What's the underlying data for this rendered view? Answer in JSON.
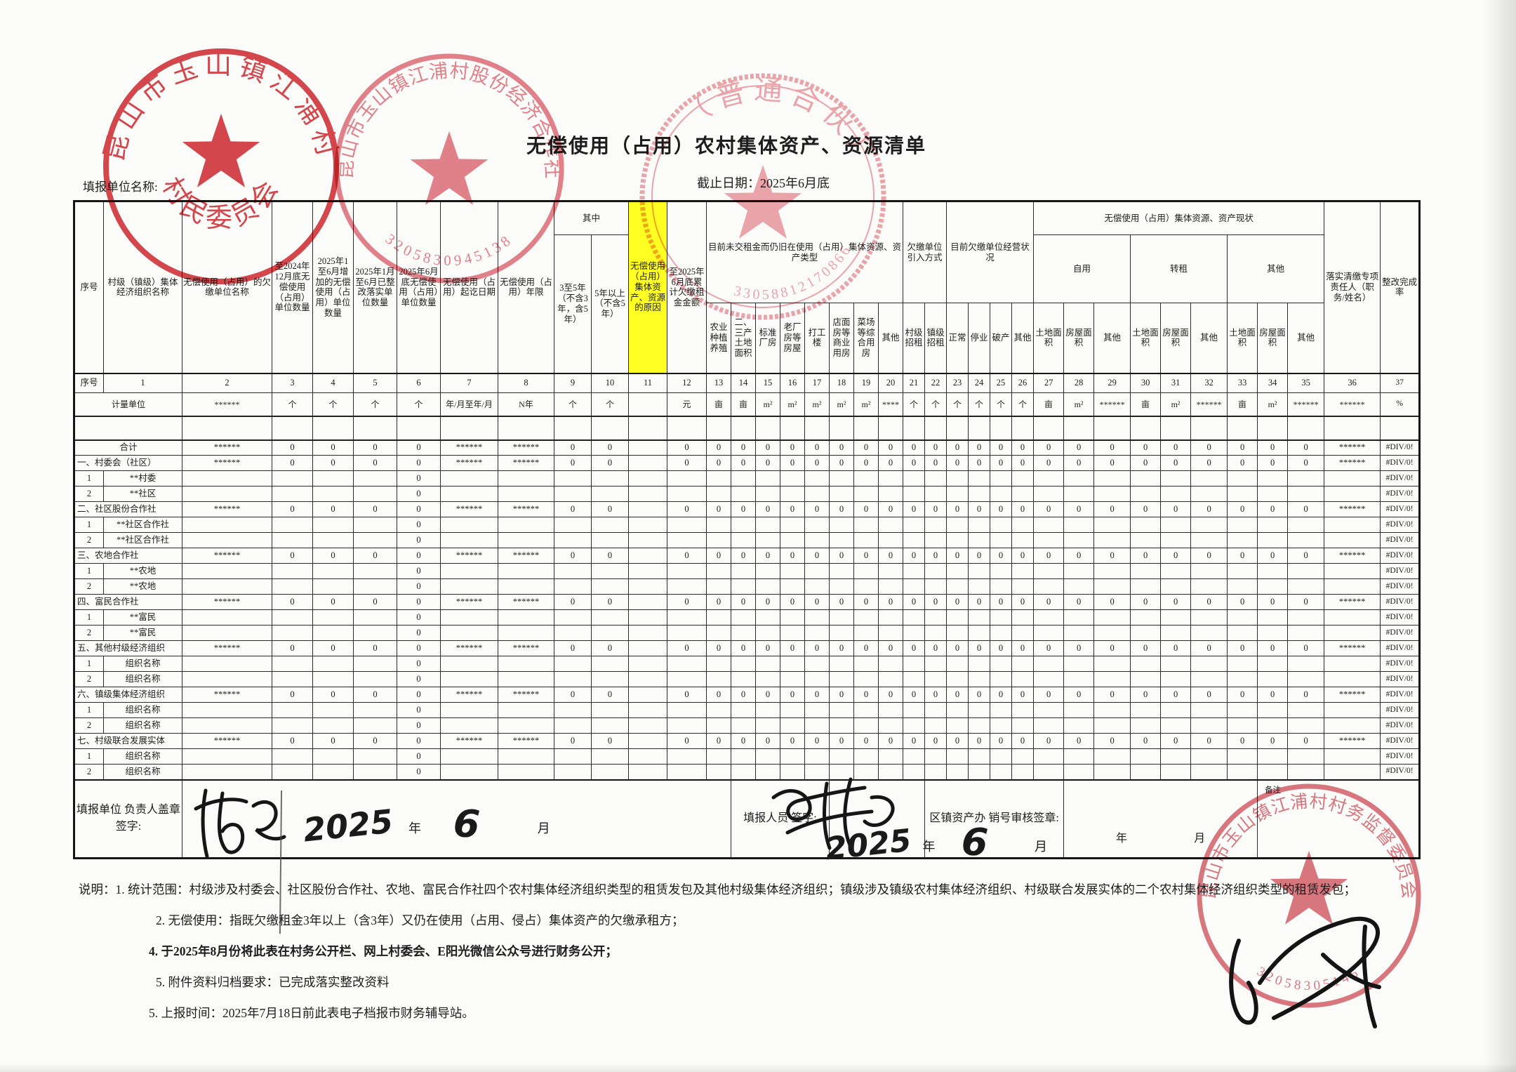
{
  "page": {
    "title": "无偿使用（占用）农村集体资产、资源清单",
    "form_unit_label": "填报单位名称:",
    "deadline_label": "截止日期：2025年6月底"
  },
  "table": {
    "header": {
      "xuhao": "序号",
      "c1": "村级（镇级）集体经济组织名称",
      "c2": "无偿使用（占用）的欠缴单位名称",
      "c3": "至2024年12月底无偿使用（占用）单位数量",
      "c4": "2025年1至6月增加的无偿使用（占用）单位数量",
      "c5": "2025年1月至6月已整改落实单位数量",
      "c6": "2025年6月底无偿使用（占用）单位数量",
      "c7": "无偿使用（占用）起讫日期",
      "c8": "无偿使用（占用）年限",
      "qizhong": "其中",
      "c9": "3至5年（不含3年，含5年）",
      "c10": "5年以上（不含5年）",
      "c11": "无偿使用（占用）集体资产、资源的原因",
      "c12": "至2025年6月底累计欠缴租金金额",
      "g_type": "目前未交租金而仍旧在使用（占用）集体资源、资产类型",
      "c13": "农业种植养殖",
      "c14": "二、三产土地面积",
      "c15": "标准厂房",
      "c16": "老厂房等房屋",
      "c17": "打工楼",
      "c18": "店面房等商业用房",
      "c19": "菜场等综合用房",
      "c20": "其他",
      "g_intro": "欠缴单位引入方式",
      "c21": "村级招租",
      "c22": "镇级招租",
      "g_status": "目前欠缴单位经营状况",
      "c23": "正常",
      "c24": "停业",
      "c25": "破产",
      "c26": "其他",
      "g_current": "无偿使用（占用）集体资源、资产现状",
      "g_self": "自用",
      "g_sublet": "转租",
      "g_other": "其他",
      "land": "土地面积",
      "house": "房屋面积",
      "other": "其他",
      "c36": "落实清缴专项责任人（职务/姓名）",
      "c37": "整改完成率"
    },
    "col_numbers": [
      "序号",
      "1",
      "2",
      "3",
      "4",
      "5",
      "6",
      "7",
      "8",
      "9",
      "10",
      "11",
      "12",
      "13",
      "14",
      "15",
      "16",
      "17",
      "18",
      "19",
      "20",
      "21",
      "22",
      "23",
      "24",
      "25",
      "26",
      "27",
      "28",
      "29",
      "30",
      "31",
      "32",
      "33",
      "34",
      "35",
      "36",
      "37"
    ],
    "units_label": "计量单位",
    "units": [
      "******",
      "个",
      "个",
      "个",
      "个",
      "年/月至年/月",
      "N年",
      "个",
      "个",
      "",
      "元",
      "亩",
      "亩",
      "m²",
      "m²",
      "m²",
      "m²",
      "m²",
      "****",
      "个",
      "个",
      "个",
      "个",
      "个",
      "个",
      "亩",
      "m²",
      "******",
      "亩",
      "m²",
      "******",
      "亩",
      "m²",
      "******",
      "******",
      "%"
    ],
    "row_patterns": {
      "summary": [
        "******",
        "0",
        "0",
        "0",
        "0",
        "******",
        "******",
        "0",
        "0",
        "",
        "0",
        "0",
        "0",
        "0",
        "0",
        "0",
        "0",
        "0",
        "0",
        "0",
        "0",
        "0",
        "0",
        "0",
        "0",
        "0",
        "0",
        "0",
        "0",
        "0",
        "0",
        "0",
        "0",
        "0",
        "******",
        "#DIV/0!"
      ],
      "detail": [
        "",
        "",
        "",
        "",
        "0",
        "",
        "",
        "",
        "",
        "",
        "",
        "",
        "",
        "",
        "",
        "",
        "",
        "",
        "",
        "",
        "",
        "",
        "",
        "",
        "",
        "",
        "",
        "",
        "",
        "",
        "",
        "",
        "",
        "",
        "",
        "#DIV/0!"
      ],
      "empty": [
        "",
        "",
        "",
        "",
        "",
        "",
        "",
        "",
        "",
        "",
        "",
        "",
        "",
        "",
        "",
        "",
        "",
        "",
        "",
        "",
        "",
        "",
        "",
        "",
        "",
        "",
        "",
        "",
        "",
        "",
        "",
        "",
        "",
        "",
        "",
        ""
      ]
    },
    "rows": [
      {
        "no": "",
        "label": "",
        "type": "empty",
        "pattern": "empty"
      },
      {
        "no": "",
        "label": "合计",
        "type": "total",
        "pattern": "summary"
      },
      {
        "no": "",
        "label": "一、村委会（社区）",
        "type": "section",
        "pattern": "summary"
      },
      {
        "no": "1",
        "label": "**村委",
        "type": "detail",
        "pattern": "detail"
      },
      {
        "no": "2",
        "label": "**社区",
        "type": "detail",
        "pattern": "detail"
      },
      {
        "no": "",
        "label": "二、社区股份合作社",
        "type": "section",
        "pattern": "summary"
      },
      {
        "no": "1",
        "label": "**社区合作社",
        "type": "detail",
        "pattern": "detail"
      },
      {
        "no": "2",
        "label": "**社区合作社",
        "type": "detail",
        "pattern": "detail"
      },
      {
        "no": "",
        "label": "三、农地合作社",
        "type": "section",
        "pattern": "summary"
      },
      {
        "no": "1",
        "label": "**农地",
        "type": "detail",
        "pattern": "detail"
      },
      {
        "no": "2",
        "label": "**农地",
        "type": "detail",
        "pattern": "detail"
      },
      {
        "no": "",
        "label": "四、富民合作社",
        "type": "section",
        "pattern": "summary"
      },
      {
        "no": "1",
        "label": "**富民",
        "type": "detail",
        "pattern": "detail"
      },
      {
        "no": "2",
        "label": "**富民",
        "type": "detail",
        "pattern": "detail"
      },
      {
        "no": "",
        "label": "五、其他村级经济组织",
        "type": "section",
        "pattern": "summary"
      },
      {
        "no": "1",
        "label": "组织名称",
        "type": "detail",
        "pattern": "detail"
      },
      {
        "no": "2",
        "label": "组织名称",
        "type": "detail",
        "pattern": "detail"
      },
      {
        "no": "",
        "label": "六、镇级集体经济组织",
        "type": "section",
        "pattern": "summary"
      },
      {
        "no": "1",
        "label": "组织名称",
        "type": "detail",
        "pattern": "detail"
      },
      {
        "no": "2",
        "label": "组织名称",
        "type": "detail",
        "pattern": "detail"
      },
      {
        "no": "",
        "label": "七、村级联合发展实体",
        "type": "section",
        "pattern": "summary"
      },
      {
        "no": "1",
        "label": "组织名称",
        "type": "detail",
        "pattern": "detail"
      },
      {
        "no": "2",
        "label": "组织名称",
        "type": "detail",
        "pattern": "detail"
      }
    ]
  },
  "footer": {
    "label_unit": "填报单位 负责人盖章签字:",
    "label_person": "填报人员 签字:",
    "label_review": "区镇资产办 销号审核签章:",
    "label_remark": "备注",
    "year": "年",
    "month": "月",
    "date1_year": "2025",
    "date1_month": "6",
    "date2_year": "2025",
    "date2_month": "6"
  },
  "notes": {
    "n1": "说明：1. 统计范围：村级涉及村委会、社区股份合作社、农地、富民合作社四个农村集体经济组织类型的租赁发包及其他村级集体经济组织；镇级涉及镇级农村集体经济组织、村级联合发展实体的二个农村集体经济组织类型的租赁发包；",
    "n2": "2. 无偿使用：指既欠缴租金3年以上（含3年）又仍在使用（占用、侵占）集体资产的欠缴承租方；",
    "n3": "4. 于2025年8月份将此表在村务公开栏、网上村委会、E阳光微信公众号进行财务公开；",
    "n4": "5. 附件资料归档要求：已完成落实整改资料",
    "n5": "5. 上报时间：2025年7月18日前此表电子档报市财务辅导站。"
  },
  "stamps": {
    "village_committee": {
      "ring_text": "昆山市玉山镇江浦村",
      "inner_text": "村民委员会"
    },
    "shareholding_coop": {
      "ring_text": "昆山市玉山镇江浦村股份经济合作社",
      "serial": "3205830945138"
    },
    "partnership": {
      "ring_text": "（普通合伙）",
      "serial": "33058812170866"
    },
    "supervision_committee": {
      "ring_text": "昆山市玉山镇江浦村村务监督委员会",
      "serial": "32058305146"
    }
  },
  "colors": {
    "highlight": "#ffff24",
    "stamp_red": "#cf1f26",
    "stamp_pink": "#e2707c"
  }
}
